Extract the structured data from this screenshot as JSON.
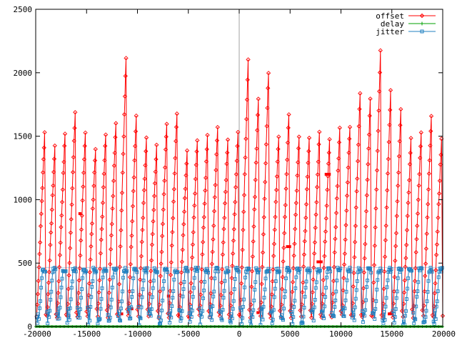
{
  "chart_data": {
    "type": "line",
    "title": "",
    "xlabel": "",
    "ylabel": "",
    "xlim": [
      -20000,
      20000
    ],
    "ylim": [
      0,
      2500
    ],
    "xticks": [
      -20000,
      -15000,
      -10000,
      -5000,
      0,
      5000,
      10000,
      15000,
      20000
    ],
    "yticks": [
      0,
      500,
      1000,
      1500,
      2000,
      2500
    ],
    "zero_line": true,
    "legend_position": "top-right",
    "sawtooth_period": 1000,
    "sawtooth_phase": -19900,
    "series": [
      {
        "name": "offset",
        "color": "#ff0000",
        "marker": "diamond",
        "base": 80,
        "peaks": [
          1530,
          1420,
          1520,
          1690,
          1520,
          1410,
          1520,
          1610,
          2120,
          1660,
          1480,
          1420,
          1610,
          1690,
          1390,
          1470,
          1500,
          1570,
          1480,
          1530,
          2090,
          1800,
          2010,
          1500,
          1680,
          1510,
          1490,
          1530,
          1490,
          1560,
          1580,
          1830,
          1780,
          2170,
          1850,
          1700,
          1480,
          1540,
          1670,
          1470
        ],
        "plateaus": [
          {
            "x": [
              -15800,
              -15500
            ],
            "y": 890
          },
          {
            "x": [
              -11700,
              -11400
            ],
            "y": 100
          },
          {
            "x": [
              -10700,
              -10400
            ],
            "y": 140
          },
          {
            "x": [
              -7100,
              -6800
            ],
            "y": 240
          },
          {
            "x": [
              1700,
              2000
            ],
            "y": 110
          },
          {
            "x": [
              4600,
              5100
            ],
            "y": 630
          },
          {
            "x": [
              7600,
              8200
            ],
            "y": 510
          },
          {
            "x": [
              8400,
              9000
            ],
            "y": 1200
          },
          {
            "x": [
              12000,
              12300
            ],
            "y": 90
          },
          {
            "x": [
              14600,
              15100
            ],
            "y": 100
          }
        ]
      },
      {
        "name": "delay",
        "color": "#00a000",
        "marker": "plus",
        "values_constant": 0
      },
      {
        "name": "jitter",
        "color": "#2080c0",
        "marker": "square",
        "base": 10,
        "ceiling": 465
      }
    ]
  },
  "legend": {
    "items": [
      {
        "label": "offset",
        "color": "#ff0000",
        "marker": "diamond"
      },
      {
        "label": "delay",
        "color": "#00a000",
        "marker": "plus"
      },
      {
        "label": "jitter",
        "color": "#2080c0",
        "marker": "square"
      }
    ]
  }
}
